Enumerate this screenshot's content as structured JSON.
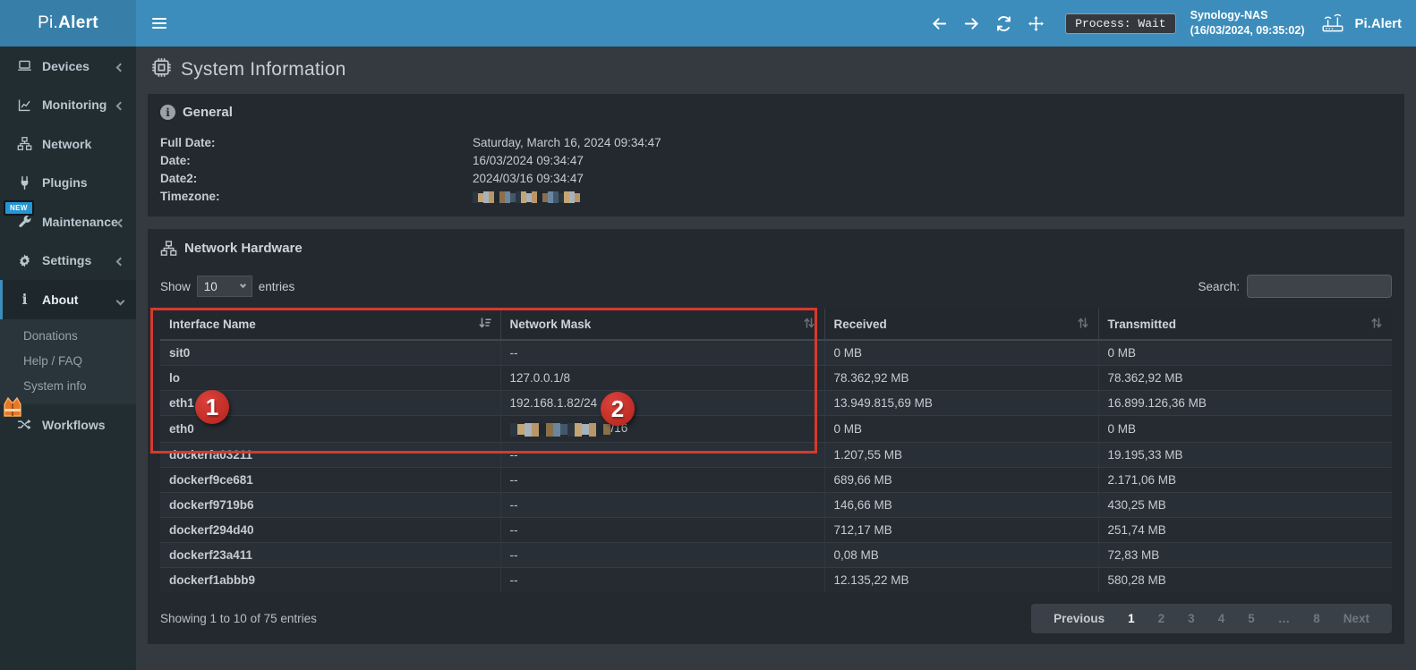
{
  "topbar": {
    "logo_prefix": "Pi.",
    "logo_bold": "Alert",
    "icons": [
      "back-icon",
      "forward-icon",
      "refresh-icon",
      "move-icon"
    ],
    "process_status": "Process: Wait",
    "host_name": "Synology-NAS",
    "host_time": "(16/03/2024, 09:35:02)",
    "brand": "Pi.Alert"
  },
  "sidebar": {
    "items": [
      {
        "slug": "devices",
        "label": "Devices",
        "icon": "laptop-icon",
        "chevron": "left"
      },
      {
        "slug": "monitoring",
        "label": "Monitoring",
        "icon": "chart-icon",
        "chevron": "left"
      },
      {
        "slug": "network",
        "label": "Network",
        "icon": "sitemap-icon",
        "chevron": ""
      },
      {
        "slug": "plugins",
        "label": "Plugins",
        "icon": "plug-icon",
        "chevron": ""
      },
      {
        "slug": "maintenance",
        "label": "Maintenance",
        "icon": "wrench-icon",
        "chevron": "left",
        "badge": "NEW"
      },
      {
        "slug": "settings",
        "label": "Settings",
        "icon": "gear-icon",
        "chevron": "left"
      },
      {
        "slug": "about",
        "label": "About",
        "icon": "info-icon",
        "chevron": "down",
        "active": true
      }
    ],
    "about_submenu": [
      {
        "slug": "donations",
        "label": "Donations"
      },
      {
        "slug": "help-faq",
        "label": "Help / FAQ"
      },
      {
        "slug": "system-info",
        "label": "System info"
      }
    ],
    "workflows": {
      "slug": "workflows",
      "label": "Workflows",
      "icon": "shuffle-icon",
      "badge_icon": "safety-vest-icon"
    }
  },
  "page": {
    "title": "System Information"
  },
  "general": {
    "title": "General",
    "fields": [
      {
        "label": "Full Date:",
        "value": "Saturday, March 16, 2024 09:34:47"
      },
      {
        "label": "Date:",
        "value": "16/03/2024 09:34:47"
      },
      {
        "label": "Date2:",
        "value": "2024/03/16 09:34:47"
      },
      {
        "label": "Timezone:",
        "value": "[REDACTED]"
      }
    ]
  },
  "network_table": {
    "title": "Network Hardware",
    "show_label": "Show",
    "page_size": "10",
    "entries_label": "entries",
    "search_label": "Search:",
    "search_value": "",
    "columns": [
      "Interface Name",
      "Network Mask",
      "Received",
      "Transmitted"
    ],
    "sorted_column": "Interface Name",
    "rows": [
      [
        "sit0",
        "--",
        "0 MB",
        "0 MB"
      ],
      [
        "lo",
        "127.0.0.1/8",
        "78.362,92 MB",
        "78.362,92 MB"
      ],
      [
        "eth1",
        "192.168.1.82/24",
        "13.949.815,69 MB",
        "16.899.126,36 MB"
      ],
      [
        "eth0",
        "[REDACTED]/16",
        "0 MB",
        "0 MB"
      ],
      [
        "dockerfa03211",
        "--",
        "1.207,55 MB",
        "19.195,33 MB"
      ],
      [
        "dockerf9ce681",
        "--",
        "689,66 MB",
        "2.171,06 MB"
      ],
      [
        "dockerf9719b6",
        "--",
        "146,66 MB",
        "430,25 MB"
      ],
      [
        "dockerf294d40",
        "--",
        "712,17 MB",
        "251,74 MB"
      ],
      [
        "dockerf23a411",
        "--",
        "0,08 MB",
        "72,83 MB"
      ],
      [
        "dockerf1abbb9",
        "--",
        "12.135,22 MB",
        "580,28 MB"
      ]
    ],
    "footer": "Showing 1 to 10 of 75 entries",
    "pagination": [
      {
        "label": "Previous",
        "style": "light"
      },
      {
        "label": "1",
        "style": "active"
      },
      {
        "label": "2",
        "style": "dim"
      },
      {
        "label": "3",
        "style": "dim"
      },
      {
        "label": "4",
        "style": "dim"
      },
      {
        "label": "5",
        "style": "dim"
      },
      {
        "label": "…",
        "style": "dim"
      },
      {
        "label": "8",
        "style": "dim"
      },
      {
        "label": "Next",
        "style": "dim"
      }
    ]
  },
  "annotations": {
    "badge1": "1",
    "badge2": "2"
  },
  "colors": {
    "navbar": "#3d8dbc",
    "sidebar": "#222d32",
    "panel": "#24292f",
    "annotation_red": "#d63a2e",
    "new_badge_blue": "#2596d1"
  }
}
